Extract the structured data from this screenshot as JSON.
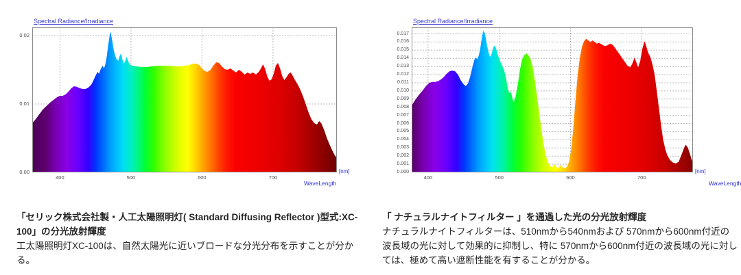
{
  "page": {
    "background": "#ffffff"
  },
  "chart_data": [
    {
      "type": "area",
      "title": "Spectral Radiance/Irradiance",
      "xlabel": "WaveLength",
      "x_unit": "[nm]",
      "ylabel": "",
      "xlim": [
        361,
        790
      ],
      "ylim": [
        0,
        0.0212
      ],
      "x_tick_values": [
        400,
        500,
        600,
        700
      ],
      "x_ticks": [
        "400",
        "500",
        "600",
        "700"
      ],
      "y_tick_values": [
        0.02,
        0.01,
        0.0
      ],
      "y_ticks": [
        "0.02",
        "0.01",
        "0.00"
      ],
      "y_grid_values": [
        0.01,
        0.02
      ],
      "grid": "dashed",
      "x": [
        361,
        366,
        371,
        376,
        381,
        386,
        391,
        396,
        400,
        404,
        408,
        412,
        416,
        420,
        424,
        428,
        432,
        436,
        440,
        444,
        447,
        450,
        453,
        455,
        457,
        460,
        462,
        464,
        466,
        468,
        470,
        471,
        472,
        474,
        476,
        478,
        480,
        482,
        484,
        486,
        488,
        490,
        492,
        494,
        496,
        498,
        502,
        508,
        515,
        522,
        530,
        538,
        546,
        554,
        562,
        570,
        576,
        582,
        588,
        592,
        596,
        600,
        604,
        608,
        612,
        616,
        620,
        624,
        628,
        632,
        636,
        640,
        644,
        648,
        652,
        656,
        660,
        664,
        668,
        672,
        676,
        680,
        683,
        686,
        689,
        692,
        695,
        698,
        701,
        704,
        707,
        710,
        713,
        716,
        719,
        722,
        725,
        728,
        731,
        734,
        738,
        742,
        746,
        750,
        754,
        758,
        762,
        765,
        768,
        772,
        776,
        780,
        784,
        787,
        790
      ],
      "y": [
        0.0072,
        0.0078,
        0.0085,
        0.0092,
        0.0097,
        0.0102,
        0.0106,
        0.011,
        0.0112,
        0.0112,
        0.0114,
        0.0118,
        0.0123,
        0.0126,
        0.0125,
        0.0123,
        0.0122,
        0.0122,
        0.0124,
        0.0128,
        0.0134,
        0.0141,
        0.0147,
        0.0144,
        0.015,
        0.0156,
        0.0152,
        0.0158,
        0.017,
        0.0186,
        0.02,
        0.0206,
        0.0202,
        0.019,
        0.0178,
        0.017,
        0.0165,
        0.0163,
        0.017,
        0.0174,
        0.0165,
        0.0159,
        0.0163,
        0.0169,
        0.0163,
        0.0158,
        0.0156,
        0.0155,
        0.0154,
        0.0154,
        0.0155,
        0.0156,
        0.0156,
        0.0156,
        0.0155,
        0.0155,
        0.0156,
        0.0157,
        0.0159,
        0.0159,
        0.0157,
        0.0152,
        0.0148,
        0.0147,
        0.015,
        0.0156,
        0.0161,
        0.016,
        0.0155,
        0.0151,
        0.015,
        0.0152,
        0.0149,
        0.0146,
        0.015,
        0.0147,
        0.0143,
        0.0146,
        0.0144,
        0.0146,
        0.0143,
        0.0147,
        0.0152,
        0.0158,
        0.0151,
        0.014,
        0.0134,
        0.0136,
        0.0144,
        0.0156,
        0.016,
        0.0152,
        0.0141,
        0.0135,
        0.0139,
        0.0144,
        0.0146,
        0.0141,
        0.0135,
        0.013,
        0.0122,
        0.0112,
        0.01,
        0.0088,
        0.0078,
        0.0072,
        0.007,
        0.0075,
        0.0072,
        0.0062,
        0.005,
        0.004,
        0.0031,
        0.0025,
        0.0021
      ]
    },
    {
      "type": "area",
      "title": "Spectral Radiance/Irradiance",
      "xlabel": "WaveLength",
      "x_unit": "[nm]",
      "ylabel": "",
      "xlim": [
        377,
        772
      ],
      "ylim": [
        0,
        0.0178
      ],
      "x_tick_values": [
        400,
        500,
        600,
        700
      ],
      "x_ticks": [
        "400",
        "500",
        "600",
        "700"
      ],
      "y_tick_values": [
        0.017,
        0.016,
        0.015,
        0.014,
        0.013,
        0.012,
        0.011,
        0.01,
        0.009,
        0.008,
        0.007,
        0.006,
        0.005,
        0.004,
        0.003,
        0.002,
        0.001,
        0.0
      ],
      "y_ticks": [
        "0.017",
        "0.016",
        "0.015",
        "0.014",
        "0.013",
        "0.012",
        "0.011",
        "0.010",
        "0.009",
        "0.008",
        "0.007",
        "0.006",
        "0.005",
        "0.004",
        "0.003",
        "0.002",
        "0.001",
        "0.000"
      ],
      "y_grid_values": [
        0.001,
        0.002,
        0.003,
        0.004,
        0.005,
        0.006,
        0.007,
        0.008,
        0.009,
        0.01,
        0.011,
        0.012,
        0.013,
        0.014,
        0.015,
        0.016,
        0.017
      ],
      "grid": "dashed",
      "x": [
        377,
        382,
        387,
        392,
        397,
        402,
        406,
        410,
        414,
        418,
        422,
        426,
        430,
        434,
        438,
        442,
        446,
        450,
        453,
        456,
        459,
        462,
        465,
        467,
        469,
        471,
        473,
        475,
        477,
        478,
        480,
        482,
        484,
        486,
        488,
        490,
        492,
        494,
        496,
        498,
        501,
        504,
        507,
        510,
        512,
        514,
        516,
        518,
        520,
        523,
        526,
        529,
        532,
        535,
        538,
        541,
        544,
        547,
        550,
        553,
        556,
        559,
        562,
        565,
        568,
        571,
        574,
        577,
        580,
        583,
        586,
        589,
        592,
        595,
        598,
        601,
        604,
        607,
        610,
        613,
        616,
        619,
        622,
        625,
        628,
        631,
        634,
        637,
        640,
        644,
        648,
        652,
        656,
        660,
        664,
        668,
        672,
        676,
        680,
        684,
        687,
        690,
        692,
        695,
        698,
        701,
        704,
        706,
        709,
        712,
        715,
        718,
        721,
        724,
        727,
        730,
        733,
        736,
        740,
        744,
        748,
        752,
        756,
        760,
        762,
        765,
        768,
        770,
        772
      ],
      "y": [
        0.0082,
        0.0089,
        0.0095,
        0.01,
        0.0106,
        0.011,
        0.0111,
        0.0111,
        0.0112,
        0.0114,
        0.0117,
        0.0121,
        0.0124,
        0.0125,
        0.0124,
        0.012,
        0.0113,
        0.0108,
        0.0106,
        0.0109,
        0.0117,
        0.0128,
        0.0138,
        0.0141,
        0.0139,
        0.0143,
        0.015,
        0.0162,
        0.0172,
        0.0174,
        0.017,
        0.016,
        0.0151,
        0.0144,
        0.0142,
        0.0148,
        0.0154,
        0.0156,
        0.0151,
        0.0144,
        0.0137,
        0.0131,
        0.0125,
        0.0113,
        0.0103,
        0.0097,
        0.0099,
        0.0093,
        0.0086,
        0.0093,
        0.0108,
        0.0126,
        0.0138,
        0.0144,
        0.0146,
        0.0144,
        0.0139,
        0.0129,
        0.0113,
        0.0094,
        0.0074,
        0.0054,
        0.0036,
        0.0022,
        0.0013,
        0.0008,
        0.0006,
        0.001,
        0.0007,
        0.0005,
        0.0009,
        0.0006,
        0.0005,
        0.0007,
        0.0013,
        0.0028,
        0.0055,
        0.0088,
        0.0118,
        0.014,
        0.0154,
        0.0161,
        0.0164,
        0.0162,
        0.016,
        0.0162,
        0.016,
        0.0158,
        0.0159,
        0.0157,
        0.0155,
        0.0156,
        0.0158,
        0.0156,
        0.0151,
        0.0146,
        0.0141,
        0.0136,
        0.0131,
        0.0129,
        0.0134,
        0.0141,
        0.0136,
        0.0129,
        0.0137,
        0.0152,
        0.0161,
        0.0156,
        0.0147,
        0.0142,
        0.0133,
        0.0121,
        0.0101,
        0.008,
        0.0059,
        0.0041,
        0.0029,
        0.0021,
        0.0015,
        0.0012,
        0.0011,
        0.0013,
        0.0022,
        0.0031,
        0.0034,
        0.003,
        0.0022,
        0.0016,
        0.0012
      ]
    }
  ],
  "spectrum_colors": [
    {
      "wl": 361,
      "color": "#4d0057"
    },
    {
      "wl": 380,
      "color": "#5e0070"
    },
    {
      "wl": 395,
      "color": "#7a00b8"
    },
    {
      "wl": 410,
      "color": "#8800e8"
    },
    {
      "wl": 425,
      "color": "#6a00ff"
    },
    {
      "wl": 440,
      "color": "#3300ff"
    },
    {
      "wl": 450,
      "color": "#0033ff"
    },
    {
      "wl": 460,
      "color": "#0066ff"
    },
    {
      "wl": 470,
      "color": "#0099ff"
    },
    {
      "wl": 480,
      "color": "#00bfff"
    },
    {
      "wl": 490,
      "color": "#00e0ef"
    },
    {
      "wl": 500,
      "color": "#00eec4"
    },
    {
      "wl": 510,
      "color": "#00f783"
    },
    {
      "wl": 520,
      "color": "#00ff33"
    },
    {
      "wl": 532,
      "color": "#2fff00"
    },
    {
      "wl": 545,
      "color": "#7dff00"
    },
    {
      "wl": 558,
      "color": "#baff00"
    },
    {
      "wl": 570,
      "color": "#e8ff00"
    },
    {
      "wl": 580,
      "color": "#ffff00"
    },
    {
      "wl": 590,
      "color": "#ffd800"
    },
    {
      "wl": 600,
      "color": "#ffab00"
    },
    {
      "wl": 612,
      "color": "#ff7700"
    },
    {
      "wl": 624,
      "color": "#ff4000"
    },
    {
      "wl": 636,
      "color": "#ff1500"
    },
    {
      "wl": 648,
      "color": "#fa0000"
    },
    {
      "wl": 680,
      "color": "#ee0000"
    },
    {
      "wl": 710,
      "color": "#dd0000"
    },
    {
      "wl": 735,
      "color": "#c40000"
    },
    {
      "wl": 755,
      "color": "#a30000"
    },
    {
      "wl": 775,
      "color": "#860000"
    },
    {
      "wl": 790,
      "color": "#700000"
    }
  ],
  "style": {
    "grid_color": "#b8b8b8",
    "frame_color": "#8c8c8c",
    "axis_text_color": "#4a4a4a",
    "chart_label_blue": "#2b2bd6",
    "caption_text_color": "#262626"
  },
  "captions": [
    {
      "heading": "「セリック株式会社製・人工太陽照明灯( Standard Diffusing Reflector )型式:XC-100」の分光放射輝度",
      "body": "工太陽照明灯XC-100は、自然太陽光に近いブロードな分光分布を示すことが分かる。"
    },
    {
      "heading": "「 ナチュラルナイトフィルター 」を通過した光の分光放射輝度",
      "body": "ナチュラルナイトフィルターは、510nmから540nmおよび 570nmから600nm付近の波長域の光に対して効果的に抑制し、特に 570nmから600nm付近の波長域の光に対しては、極めて高い遮断性能を有することが分かる。"
    }
  ]
}
